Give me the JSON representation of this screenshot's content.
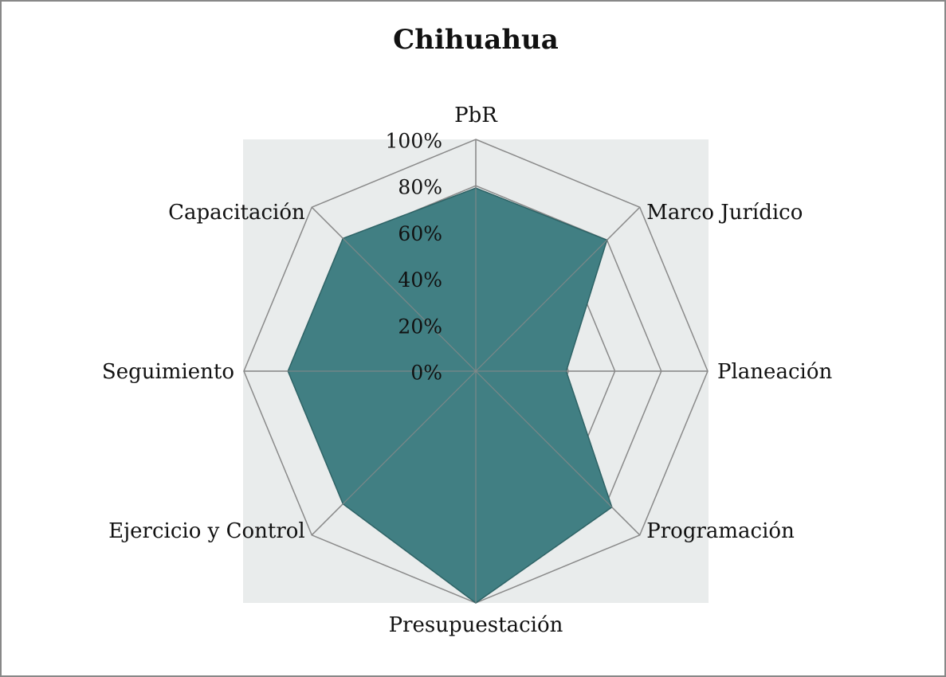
{
  "chart_data": {
    "type": "radar",
    "title": "Chihuahua",
    "categories": [
      "PbR",
      "Marco Jurídico",
      "Planeación",
      "Programación",
      "Presupuestación",
      "Ejercicio y Control",
      "Seguimiento",
      "Capacitación"
    ],
    "values": [
      79,
      80,
      39,
      83,
      100,
      81,
      81,
      81
    ],
    "color": "#417f83",
    "ylim": [
      0,
      100
    ],
    "yticks": [
      {
        "value": 0,
        "label": "0%"
      },
      {
        "value": 20,
        "label": "20%"
      },
      {
        "value": 40,
        "label": "40%"
      },
      {
        "value": 60,
        "label": "60%"
      },
      {
        "value": 80,
        "label": "80%"
      },
      {
        "value": 100,
        "label": "100%"
      }
    ],
    "grid": true
  }
}
